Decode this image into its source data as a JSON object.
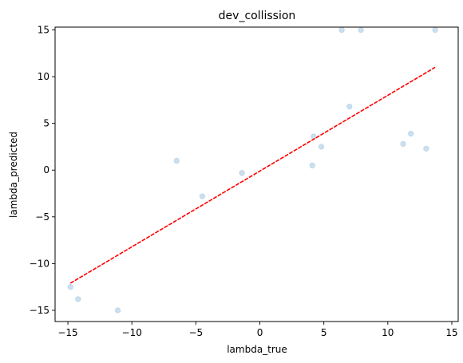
{
  "chart_data": {
    "type": "scatter",
    "title": "dev_collission",
    "xlabel": "lambda_true",
    "ylabel": "lambda_predicted",
    "xlim": [
      -16,
      15.5
    ],
    "ylim": [
      -16.2,
      15.3
    ],
    "xticks": [
      -15,
      -10,
      -5,
      0,
      5,
      10,
      15
    ],
    "yticks": [
      -15,
      -10,
      -5,
      0,
      5,
      10,
      15
    ],
    "xtick_labels": [
      "−15",
      "−10",
      "−5",
      "0",
      "5",
      "10",
      "15"
    ],
    "ytick_labels": [
      "−15",
      "−10",
      "−5",
      "0",
      "5",
      "10",
      "15"
    ],
    "grid": false,
    "series": [
      {
        "kind": "points",
        "color": "#a9c9e2",
        "x": [
          -14.8,
          -14.2,
          -11.1,
          -6.5,
          -4.5,
          -1.4,
          4.1,
          4.2,
          4.8,
          6.4,
          7.0,
          7.9,
          11.2,
          11.8,
          13.0,
          13.7
        ],
        "y": [
          -12.5,
          -13.8,
          -15.0,
          1.0,
          -2.8,
          -0.3,
          0.5,
          3.6,
          2.5,
          15.0,
          6.8,
          15.0,
          2.8,
          3.9,
          2.3,
          15.0
        ]
      },
      {
        "kind": "fit-line",
        "color": "#ff0000",
        "x": [
          -14.8,
          13.7
        ],
        "y": [
          -12.1,
          11.0
        ]
      }
    ]
  }
}
